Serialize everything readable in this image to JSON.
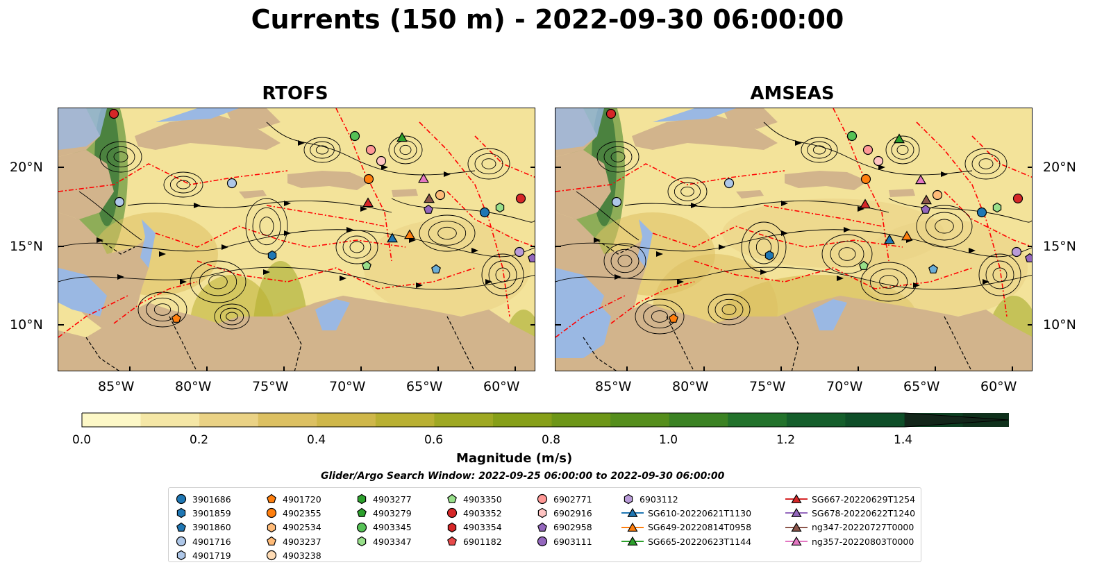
{
  "title": "Currents (150 m) - 2022-09-30 06:00:00",
  "panels": [
    {
      "title": "RTOFS"
    },
    {
      "title": "AMSEAS"
    }
  ],
  "axes": {
    "lat_ticks": [
      "20°N",
      "15°N",
      "10°N"
    ],
    "lon_ticks": [
      "85°W",
      "80°W",
      "75°W",
      "70°W",
      "65°W",
      "60°W"
    ]
  },
  "colorbar": {
    "label": "Magnitude (m/s)",
    "ticks": [
      "0.0",
      "0.2",
      "0.4",
      "0.6",
      "0.8",
      "1.0",
      "1.2",
      "1.4"
    ],
    "colors": [
      "#fdf8c7",
      "#f5e7a6",
      "#ead285",
      "#dcc062",
      "#cfb74a",
      "#b9b032",
      "#9ea822",
      "#869f18",
      "#6d9617",
      "#558e1c",
      "#3b8223",
      "#22722b",
      "#145e2b",
      "#0e4e28",
      "#0d3f22",
      "#0f311c",
      "#13261a"
    ]
  },
  "search_window": "Glider/Argo Search Window: 2022-09-25 06:00:00 to 2022-09-30 06:00:00",
  "legend": {
    "columns": [
      [
        {
          "label": "3901686",
          "shape": "circle",
          "color": "#1f77b4"
        },
        {
          "label": "3901859",
          "shape": "hexagon",
          "color": "#1f77b4"
        },
        {
          "label": "3901860",
          "shape": "pentagon",
          "color": "#1f77b4"
        },
        {
          "label": "4901716",
          "shape": "circle",
          "color": "#aec7e8"
        },
        {
          "label": "4901719",
          "shape": "hexagon",
          "color": "#aec7e8"
        }
      ],
      [
        {
          "label": "4901720",
          "shape": "pentagon",
          "color": "#ff7f0e"
        },
        {
          "label": "4902355",
          "shape": "circle",
          "color": "#ff7f0e"
        },
        {
          "label": "4902534",
          "shape": "hexagon",
          "color": "#ffbb78"
        },
        {
          "label": "4903237",
          "shape": "pentagon",
          "color": "#ffbb78"
        },
        {
          "label": "4903238",
          "shape": "circle",
          "color": "#ffdcb5"
        }
      ],
      [
        {
          "label": "4903277",
          "shape": "hexagon",
          "color": "#2ca02c"
        },
        {
          "label": "4903279",
          "shape": "pentagon",
          "color": "#2ca02c"
        },
        {
          "label": "4903345",
          "shape": "circle",
          "color": "#56c256"
        },
        {
          "label": "4903347",
          "shape": "hexagon",
          "color": "#98df8a"
        }
      ],
      [
        {
          "label": "4903350",
          "shape": "pentagon",
          "color": "#98df8a"
        },
        {
          "label": "4903352",
          "shape": "circle",
          "color": "#d62728"
        },
        {
          "label": "4903354",
          "shape": "hexagon",
          "color": "#d62728"
        },
        {
          "label": "6901182",
          "shape": "pentagon",
          "color": "#e74a4a"
        }
      ],
      [
        {
          "label": "6902771",
          "shape": "circle",
          "color": "#ff9896"
        },
        {
          "label": "6902916",
          "shape": "hexagon",
          "color": "#ffc4c2"
        },
        {
          "label": "6902958",
          "shape": "pentagon",
          "color": "#9467bd"
        },
        {
          "label": "6903111",
          "shape": "circle",
          "color": "#9467bd"
        }
      ],
      [
        {
          "label": "6903112",
          "shape": "hexagon",
          "color": "#b99bd8"
        },
        {
          "label": "SG610-20220621T1130",
          "shape": "triangle",
          "color": "#1f77b4"
        },
        {
          "label": "SG649-20220814T0958",
          "shape": "triangle",
          "color": "#ff7f0e"
        },
        {
          "label": "SG665-20220623T1144",
          "shape": "triangle",
          "color": "#2ca02c"
        }
      ],
      [
        {
          "label": "SG667-20220629T1254",
          "shape": "triangle",
          "color": "#d62728"
        },
        {
          "label": "SG678-20220622T1240",
          "shape": "triangle",
          "color": "#9467bd"
        },
        {
          "label": "ng347-20220727T0000",
          "shape": "triangle",
          "color": "#8c564b"
        },
        {
          "label": "ng357-20220803T0000",
          "shape": "triangle",
          "color": "#e377c2"
        }
      ]
    ]
  },
  "colors": {
    "land": "#d2b48c",
    "ocean": "#9ab8e3",
    "eez": "#ff0000",
    "streamline": "#000000"
  }
}
